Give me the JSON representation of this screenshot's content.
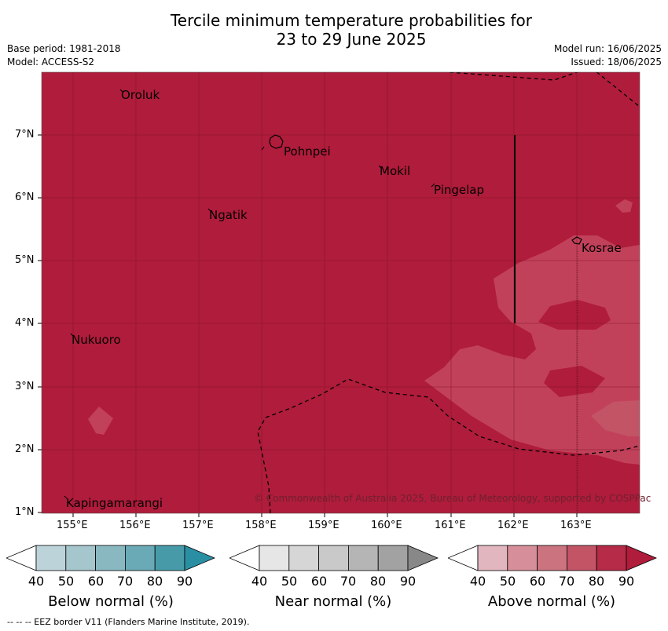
{
  "title_line1": "Tercile minimum temperature probabilities for",
  "title_line2": "23 to 29 June 2025",
  "base_period": "Base period: 1981-2018",
  "model": "Model: ACCESS-S2",
  "model_run": "Model run: 16/06/2025",
  "issued": "Issued: 18/06/2025",
  "places": [
    {
      "name": "Oroluk"
    },
    {
      "name": "Pohnpei"
    },
    {
      "name": "Mokil"
    },
    {
      "name": "Pingelap"
    },
    {
      "name": "Ngatik"
    },
    {
      "name": "Kosrae"
    },
    {
      "name": "Nukuoro"
    },
    {
      "name": "Kapingamarangi"
    }
  ],
  "copyright": "© Commonwealth of Australia 2025, Bureau of Meteorology, supported by COSPPac",
  "axes": {
    "lon_labels": [
      "155°E",
      "156°E",
      "157°E",
      "158°E",
      "159°E",
      "160°E",
      "161°E",
      "162°E",
      "163°E"
    ],
    "lat_labels": [
      "7°N",
      "6°N",
      "5°N",
      "4°N",
      "3°N",
      "2°N",
      "1°N"
    ]
  },
  "colorbars": [
    {
      "label": "Below normal (%)",
      "ticks": [
        "40",
        "50",
        "60",
        "70",
        "80",
        "90"
      ],
      "colors": [
        "#ffffff",
        "#bdd3da",
        "#a5c6cd",
        "#8ab8c1",
        "#6aaab6",
        "#479ba9",
        "#2b8fa3"
      ]
    },
    {
      "label": "Near normal (%)",
      "ticks": [
        "40",
        "50",
        "60",
        "70",
        "80",
        "90"
      ],
      "colors": [
        "#ffffff",
        "#e6e6e6",
        "#d6d6d6",
        "#c9c9c9",
        "#b5b5b5",
        "#a2a2a2",
        "#888888"
      ]
    },
    {
      "label": "Above normal (%)",
      "ticks": [
        "40",
        "50",
        "60",
        "70",
        "80",
        "90"
      ],
      "colors": [
        "#ffffff",
        "#e1b6bf",
        "#d68f9a",
        "#cb7480",
        "#c25466",
        "#b62b47",
        "#b01c3b"
      ]
    }
  ],
  "footer": "--  --  -- EEZ border V11 (Flanders Marine Institute, 2019).",
  "colors": {
    "above_90": "#b01c3b",
    "above_80": "#c2415a",
    "above_70": "#c25466",
    "gridline": "#7a1428"
  }
}
